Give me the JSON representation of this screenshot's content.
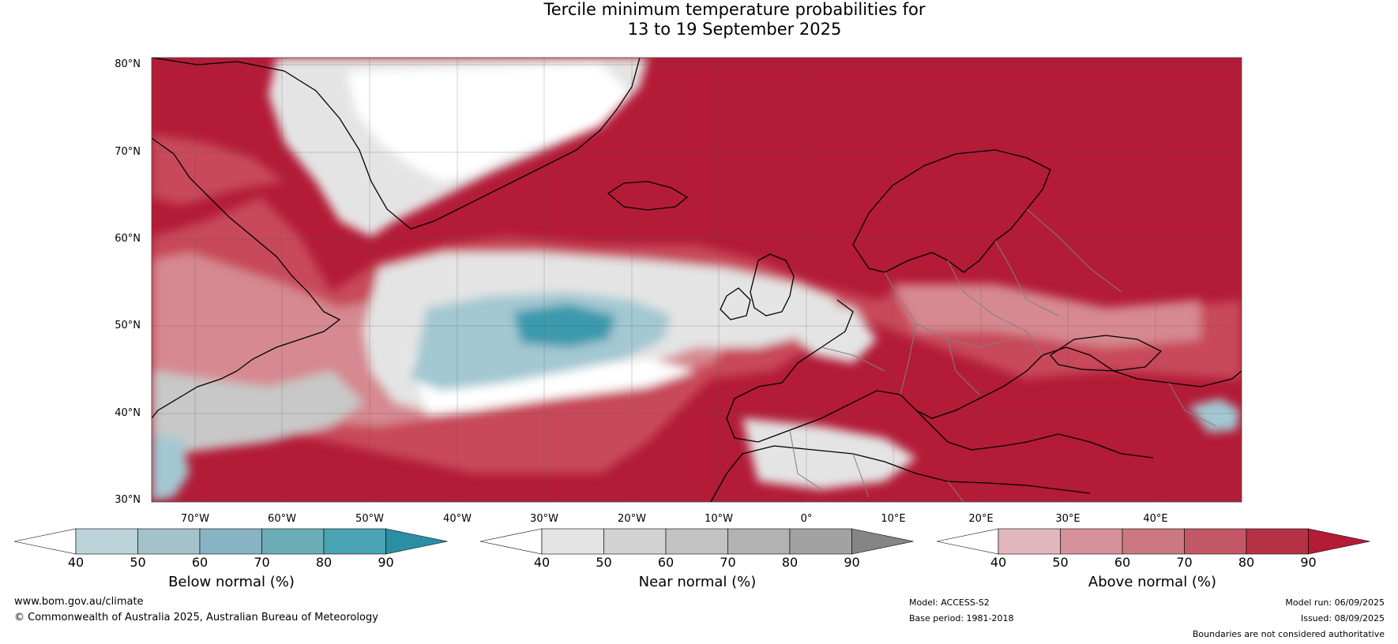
{
  "title": {
    "line1": "Tercile minimum temperature probabilities for",
    "line2": "13 to 19 September 2025"
  },
  "map": {
    "latitude_labels": [
      "80°N",
      "70°N",
      "60°N",
      "50°N",
      "40°N",
      "30°N"
    ],
    "longitude_labels": [
      "70°W",
      "60°W",
      "50°W",
      "40°W",
      "30°W",
      "20°W",
      "10°W",
      "0°",
      "10°E",
      "20°E",
      "30°E",
      "40°E"
    ],
    "colors": {
      "above_dark": "#b31b37",
      "above_mid": "#c8485a",
      "above_light": "#d68990",
      "near_light": "#e4e4e4",
      "near_mid": "#c8c8c8",
      "below_light": "#a3c8d2",
      "below_dark": "#3b9aae",
      "coastline": "#000000",
      "borders": "#808080"
    }
  },
  "colorbars": [
    {
      "label": "Below normal (%)",
      "ticks": [
        "40",
        "50",
        "60",
        "70",
        "80",
        "90"
      ],
      "colors": [
        "#ffffff",
        "#bcd3da",
        "#a3c2ca",
        "#88b3c2",
        "#6cadb8",
        "#49a3b3",
        "#2a8fa3"
      ]
    },
    {
      "label": "Near normal (%)",
      "ticks": [
        "40",
        "50",
        "60",
        "70",
        "80",
        "90"
      ],
      "colors": [
        "#ffffff",
        "#e4e4e4",
        "#d3d3d3",
        "#c2c2c2",
        "#b2b2b2",
        "#a2a2a2",
        "#858585"
      ]
    },
    {
      "label": "Above normal (%)",
      "ticks": [
        "40",
        "50",
        "60",
        "70",
        "80",
        "90"
      ],
      "colors": [
        "#ffffff",
        "#e2b8be",
        "#d6929a",
        "#cc7880",
        "#c25866",
        "#b53246",
        "#b31b37"
      ]
    }
  ],
  "footer": {
    "website": "www.bom.gov.au/climate",
    "copyright": "© Commonwealth of Australia 2025, Australian Bureau of Meteorology",
    "model": "Model: ACCESS-S2",
    "base_period": "Base period: 1981-2018",
    "model_run": "Model run: 06/09/2025",
    "issued": "Issued: 08/09/2025",
    "disclaimer": "Boundaries are not considered authoritative"
  }
}
